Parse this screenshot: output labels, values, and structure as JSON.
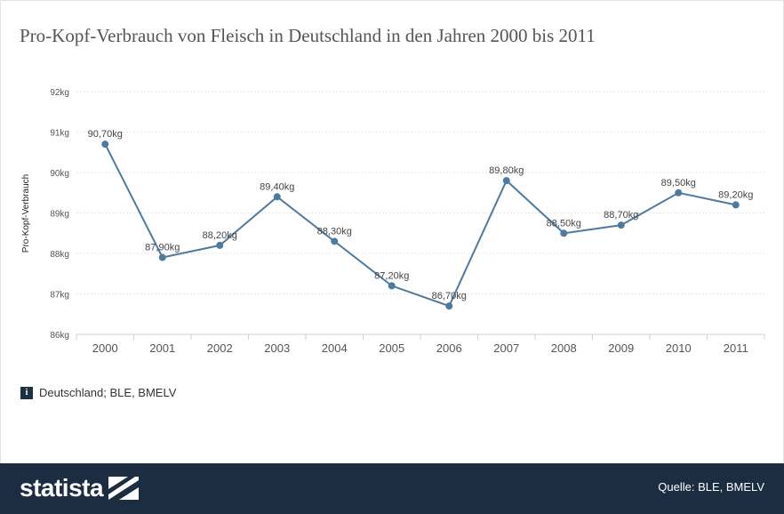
{
  "title": "Pro-Kopf-Verbrauch von Fleisch in Deutschland in den Jahren 2000 bis 2011",
  "info_text": "Deutschland; BLE, BMELV",
  "info_icon": "i",
  "footer": {
    "brand": "statista",
    "source": "Quelle: BLE, BMELV"
  },
  "colors": {
    "line": "#4f7aa0",
    "footer_bg": "#1c2d42",
    "grid": "#e6e6e6"
  },
  "chart_data": {
    "type": "line",
    "title": "Pro-Kopf-Verbrauch von Fleisch in Deutschland in den Jahren 2000 bis 2011",
    "xlabel": "",
    "ylabel": "Pro-Kopf-Verbrauch",
    "categories": [
      "2000",
      "2001",
      "2002",
      "2003",
      "2004",
      "2005",
      "2006",
      "2007",
      "2008",
      "2009",
      "2010",
      "2011"
    ],
    "values": [
      90.7,
      87.9,
      88.2,
      89.4,
      88.3,
      87.2,
      86.7,
      89.8,
      88.5,
      88.7,
      89.5,
      89.2
    ],
    "data_labels": [
      "90,70kg",
      "87,90kg",
      "88,20kg",
      "89,40kg",
      "88,30kg",
      "87,20kg",
      "86,70kg",
      "89,80kg",
      "88,50kg",
      "88,70kg",
      "89,50kg",
      "89,20kg"
    ],
    "ylim": [
      86,
      92
    ],
    "yticks": [
      86,
      87,
      88,
      89,
      90,
      91,
      92
    ],
    "ytick_labels": [
      "86kg",
      "87kg",
      "88kg",
      "89kg",
      "90kg",
      "91kg",
      "92kg"
    ],
    "grid": true,
    "legend": "none"
  }
}
